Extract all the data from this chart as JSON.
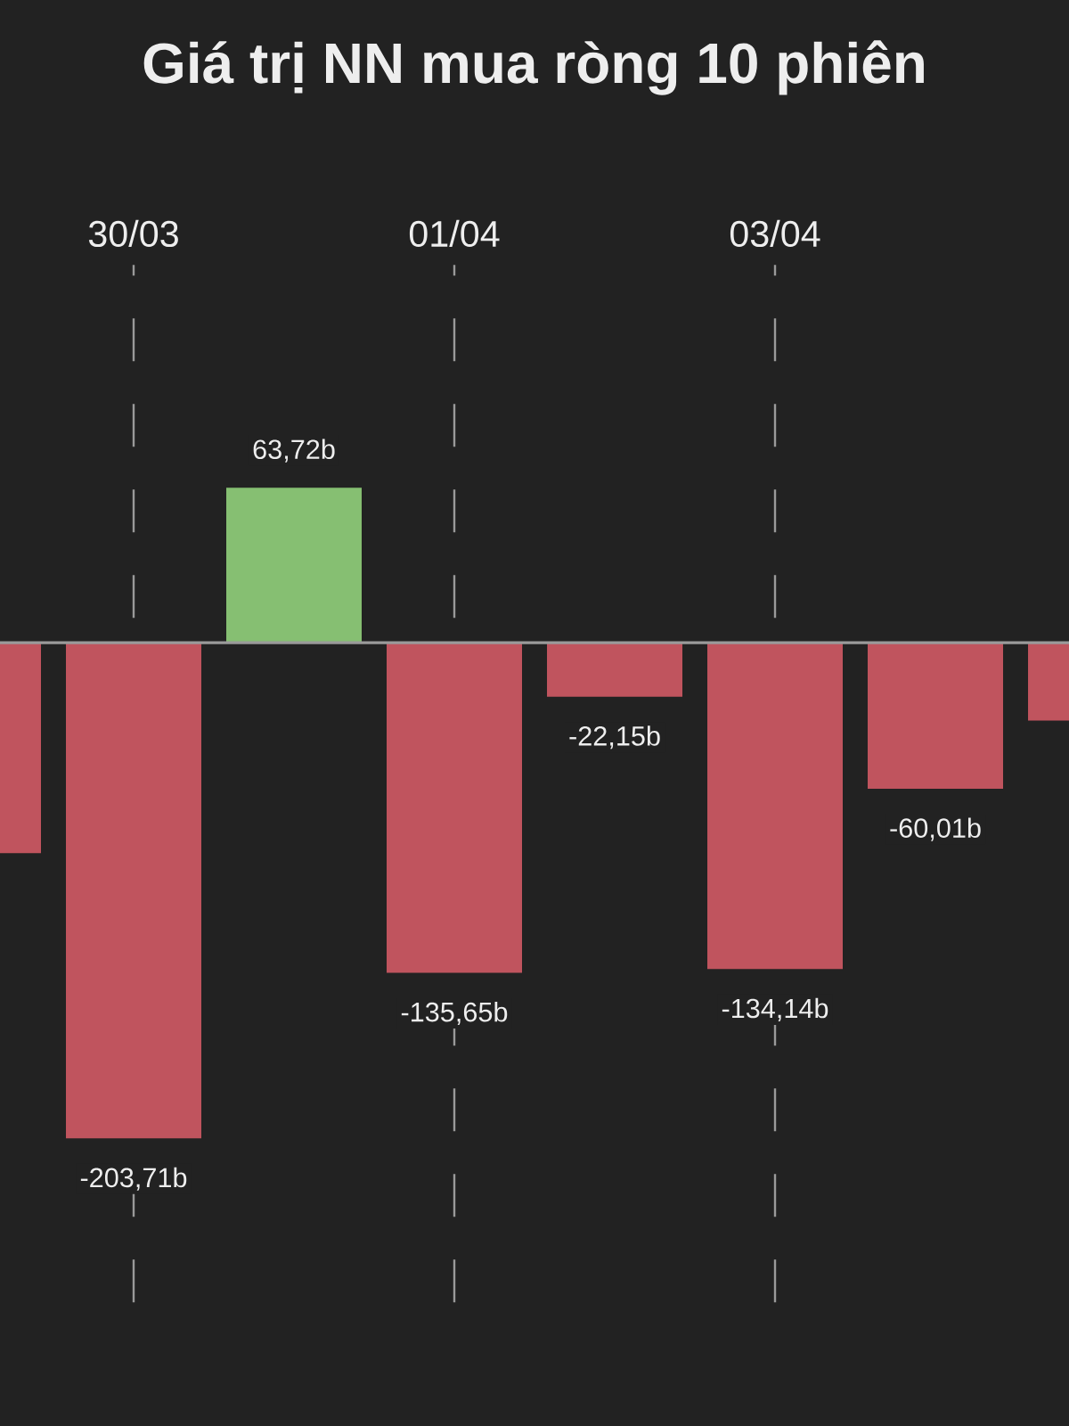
{
  "chart_data": {
    "type": "bar",
    "title": "Giá trị NN mua ròng 10 phiên",
    "categories": [
      null,
      "30/03",
      null,
      "01/04",
      null,
      "03/04",
      null,
      null
    ],
    "values": [
      -86.5,
      -203.71,
      63.72,
      -135.65,
      -22.15,
      -134.14,
      -60.01,
      -32
    ],
    "colors": [
      "#c0545e",
      "#c0545e",
      "#86bf72",
      "#c0545e",
      "#c0545e",
      "#c0545e",
      "#c0545e",
      "#c0545e"
    ],
    "value_labels": [
      null,
      "-203,71b",
      "63,72b",
      "-135,65b",
      "-22,15b",
      "-134,14b",
      "-60,01b",
      null
    ],
    "grid": "x"
  }
}
